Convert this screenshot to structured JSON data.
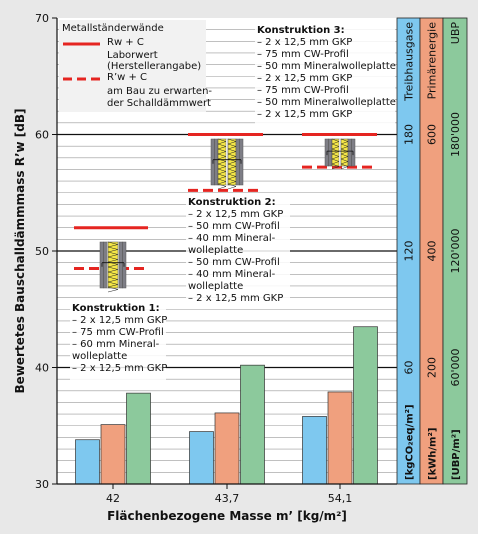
{
  "chart_data": {
    "type": "bar",
    "categories": [
      "42",
      "43,7",
      "54,1"
    ],
    "series": [
      {
        "name": "Treibhausgase",
        "color": "#7ec8ef",
        "values": [
          33.8,
          34.5,
          35.8
        ]
      },
      {
        "name": "Primärenergie",
        "color": "#f0a07e",
        "values": [
          35.1,
          36.1,
          37.9
        ]
      },
      {
        "name": "UBP",
        "color": "#8cc99c",
        "values": [
          37.8,
          40.2,
          43.5
        ]
      }
    ],
    "xlabel": "Flächenbezogene Masse m’ [kg/m²]",
    "ylabel": "Bewertetes Bauschalldämmmass R’w [dB]",
    "ylim": [
      30,
      70
    ],
    "yticks": [
      30,
      40,
      50,
      60,
      70
    ],
    "grid": true,
    "laboratory_values": [
      52,
      60,
      60
    ],
    "in_situ_values": [
      48.5,
      55.2,
      57.2
    ],
    "right_axes": [
      {
        "title": "Treibhausgase",
        "unit": "[kgCO₂eq/m²]",
        "color": "#7ec8ef",
        "ticks": [
          "60",
          "120",
          "180"
        ]
      },
      {
        "title": "Primärenergie",
        "unit": "[kWh/m²]",
        "color": "#f0a07e",
        "ticks": [
          "200",
          "400",
          "600"
        ]
      },
      {
        "title": "UBP",
        "unit": "[UBP/m²]",
        "color": "#8cc99c",
        "ticks": [
          "60'000",
          "120'000",
          "180'000"
        ]
      }
    ],
    "right_axis_tick_levels": [
      40,
      50,
      60
    ]
  },
  "legend": {
    "title": "Metallständerwände",
    "solid_label": "Rw + C",
    "solid_desc": [
      "Laborwert",
      "(Herstellerangabe)"
    ],
    "dashed_label": "R’w + C",
    "dashed_desc": [
      "am Bau zu erwarten-",
      "der Schalldämmwert"
    ]
  },
  "constructions": [
    {
      "title": "Konstruktion 1:",
      "lines": [
        "–  2 x 12,5 mm GKP",
        "–  75 mm CW-Profil",
        "–  60 mm Mineral-",
        "    wolleplatte",
        "–  2 x 12,5 mm GKP"
      ]
    },
    {
      "title": "Konstruktion 2:",
      "lines": [
        "–  2 x 12,5 mm GKP",
        "–  50 mm CW-Profil",
        "–  40 mm Mineral-",
        "    wolleplatte",
        "–  50 mm CW-Profil",
        "–  40 mm Mineral-",
        "    wolleplatte",
        "–  2 x 12,5 mm GKP"
      ]
    },
    {
      "title": "Konstruktion 3:",
      "lines": [
        "–  2 x 12,5 mm GKP",
        "–  75 mm CW-Profil",
        "–  50 mm Mineralwolleplatte",
        "–  2 x 12,5 mm GKP",
        "–  75 mm CW-Profil",
        "–  50 mm Mineralwolleplatte",
        "–  2 x 12,5 mm GKP"
      ]
    }
  ]
}
